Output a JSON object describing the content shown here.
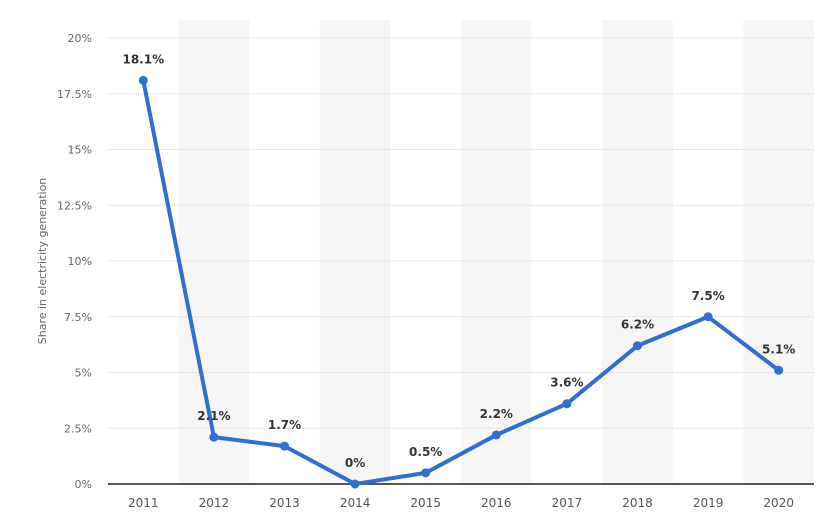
{
  "chart_data": {
    "type": "line",
    "title": "",
    "xlabel": "",
    "ylabel": "Share in electricity generation",
    "categories": [
      "2011",
      "2012",
      "2013",
      "2014",
      "2015",
      "2016",
      "2017",
      "2018",
      "2019",
      "2020"
    ],
    "series": [
      {
        "name": "Share in electricity generation",
        "values": [
          18.1,
          2.1,
          1.7,
          0,
          0.5,
          2.2,
          3.6,
          6.2,
          7.5,
          5.1
        ],
        "labels": [
          "18.1%",
          "2.1%",
          "1.7%",
          "0%",
          "0.5%",
          "2.2%",
          "3.6%",
          "6.2%",
          "7.5%",
          "5.1%"
        ],
        "color": "#2f6fce"
      }
    ],
    "ylim": [
      0,
      20
    ],
    "yticks": [
      0,
      2.5,
      5,
      7.5,
      10,
      12.5,
      15,
      17.5,
      20
    ],
    "ytick_labels": [
      "0%",
      "2.5%",
      "5%",
      "7.5%",
      "10%",
      "12.5%",
      "15%",
      "17.5%",
      "20%"
    ],
    "grid": true,
    "legend": null,
    "band_color": "#f6f6f6",
    "grid_color": "#d4d4d4",
    "axis_color": "#555555"
  }
}
